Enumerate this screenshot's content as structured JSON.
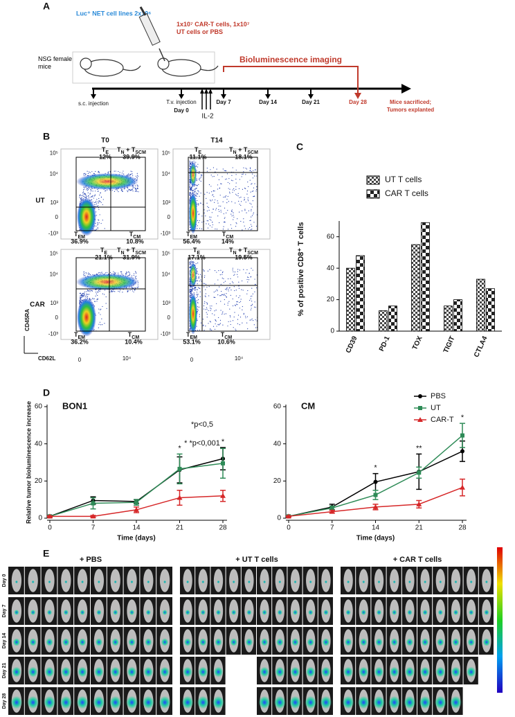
{
  "panel_a": {
    "label": "A",
    "cells": "Luc⁺ NET cell lines 2x10⁶",
    "injection": "1x10⁷ CAR-T cells, 1x10⁷ UT cells or PBS",
    "mice": "NSG female mice",
    "imaging": "Bioluminescence imaging",
    "sc": "s.c. injection",
    "tv": "T.v. injection",
    "day0": "Day 0",
    "il2": "IL-2",
    "day7": "Day 7",
    "day14": "Day 14",
    "day21": "Day 21",
    "day28": "Day 28",
    "end": "Mice sacrificed; Tumors explanted"
  },
  "panel_b": {
    "label": "B",
    "columns": [
      "T0",
      "T14"
    ],
    "rows": [
      "UT",
      "CAR"
    ],
    "ylabel": "CD45RA",
    "xlabel": "CD62L",
    "yticks": [
      "10⁵",
      "10⁴",
      "10³",
      "0",
      "-10³"
    ],
    "xticks": [
      "0",
      "10⁴"
    ],
    "plots": [
      {
        "te": {
          "name": [
            "T",
            "E"
          ],
          "pct": "12%"
        },
        "tn": {
          "name": [
            "T",
            "N",
            " + T",
            "SCM"
          ],
          "pct": "39.9%"
        },
        "tem": {
          "name": [
            "T",
            "EM"
          ],
          "pct": "36.9%"
        },
        "tcm": {
          "name": [
            "T",
            "CM"
          ],
          "pct": "10.8%"
        }
      },
      {
        "te": {
          "name": [
            "T",
            "E"
          ],
          "pct": "11.1%"
        },
        "tn": {
          "name": [
            "T",
            "N",
            " + T",
            "SCM"
          ],
          "pct": "18.1%"
        },
        "tem": {
          "name": [
            "T",
            "EM"
          ],
          "pct": "56.4%"
        },
        "tcm": {
          "name": [
            "T",
            "CM"
          ],
          "pct": "14%"
        }
      },
      {
        "te": {
          "name": [
            "T",
            "E"
          ],
          "pct": "21.1%"
        },
        "tn": {
          "name": [
            "T",
            "N",
            " + T",
            "SCM"
          ],
          "pct": "31.9%"
        },
        "tem": {
          "name": [
            "T",
            "EM"
          ],
          "pct": "36.2%"
        },
        "tcm": {
          "name": [
            "T",
            "CM"
          ],
          "pct": "10.4%"
        }
      },
      {
        "te": {
          "name": [
            "T",
            "E"
          ],
          "pct": "17.1%"
        },
        "tn": {
          "name": [
            "T",
            "N",
            " + T",
            "SCM"
          ],
          "pct": "19.5%"
        },
        "tem": {
          "name": [
            "T",
            "EM"
          ],
          "pct": "53.1%"
        },
        "tcm": {
          "name": [
            "T",
            "CM"
          ],
          "pct": "10.6%"
        }
      }
    ]
  },
  "panel_e": {
    "label": "E",
    "groups": [
      "+ PBS",
      "+ UT T cells",
      "+ CAR T cells"
    ],
    "rows": [
      "Day 0",
      "Day 7",
      "Day 14",
      "Day 21",
      "Day 28"
    ]
  },
  "chart_data": [
    {
      "type": "bar",
      "panel": "C",
      "ylabel": "% of positive CD8⁺ T cells",
      "categories": [
        "CD39",
        "PD-1",
        "TOX",
        "TIGIT",
        "CTLA4"
      ],
      "series": [
        {
          "name": "UT T cells",
          "color": "#444444",
          "values": [
            40,
            13,
            55,
            16,
            33
          ]
        },
        {
          "name": "CAR T cells",
          "color": "#222222",
          "values": [
            48,
            16,
            69,
            20,
            27
          ]
        }
      ],
      "ylim": [
        0,
        70
      ],
      "yticks": [
        0,
        20,
        40,
        60
      ],
      "legend": "top"
    },
    {
      "type": "line",
      "panel": "D",
      "title": "BON1",
      "ylabel": "Relative tumor bioluminescence increase",
      "xlabel": "Time (days)",
      "x": [
        0,
        7,
        14,
        21,
        28
      ],
      "xlim": [
        0,
        28
      ],
      "xticks": [
        0,
        7,
        14,
        21,
        28
      ],
      "ylim": [
        0,
        60
      ],
      "yticks": [
        0,
        20,
        40,
        60
      ],
      "notes": [
        "*p<0,5",
        "* *p<0,001"
      ],
      "series": [
        {
          "name": "PBS",
          "color": "#000000",
          "marker": "circle",
          "values": [
            1,
            9.5,
            9,
            26,
            32
          ],
          "errors": [
            0.5,
            2,
            1,
            7,
            6
          ]
        },
        {
          "name": "UT",
          "color": "#2e8b57",
          "marker": "square",
          "values": [
            1,
            8,
            8.5,
            26.5,
            29.5
          ],
          "errors": [
            0.5,
            3,
            1.5,
            8,
            8
          ]
        },
        {
          "name": "CAR-T",
          "color": "#d62728",
          "marker": "triangle",
          "values": [
            1,
            1,
            4.5,
            11,
            12
          ],
          "errors": [
            0.3,
            0.5,
            1.5,
            4,
            3
          ]
        }
      ],
      "annotations": [
        {
          "text": "*",
          "x": 21
        },
        {
          "text": "*",
          "x": 28
        }
      ]
    },
    {
      "type": "line",
      "title": "CM",
      "xlabel": "Time (days)",
      "x": [
        0,
        7,
        14,
        21,
        28
      ],
      "xlim": [
        0,
        28
      ],
      "xticks": [
        0,
        7,
        14,
        21,
        28
      ],
      "ylim": [
        0,
        60
      ],
      "yticks": [
        0,
        20,
        40,
        60
      ],
      "series": [
        {
          "name": "PBS",
          "color": "#000000",
          "marker": "circle",
          "values": [
            1,
            6,
            19.5,
            25,
            36
          ],
          "errors": [
            0.3,
            1.5,
            4.5,
            9.5,
            5.5
          ]
        },
        {
          "name": "UT",
          "color": "#2e8b57",
          "marker": "square",
          "values": [
            1,
            5.5,
            12.5,
            24.5,
            44.5
          ],
          "errors": [
            0.3,
            1,
            2.5,
            3,
            6.5
          ]
        },
        {
          "name": "CAR-T",
          "color": "#d62728",
          "marker": "triangle",
          "values": [
            1,
            3.5,
            6,
            7.5,
            16.5
          ],
          "errors": [
            0.3,
            0.7,
            1.5,
            2,
            4.5
          ]
        }
      ],
      "annotations": [
        {
          "text": "*",
          "x": 14
        },
        {
          "text": "**",
          "x": 21
        },
        {
          "text": "*",
          "x": 28
        }
      ],
      "legend": "top-right"
    }
  ]
}
